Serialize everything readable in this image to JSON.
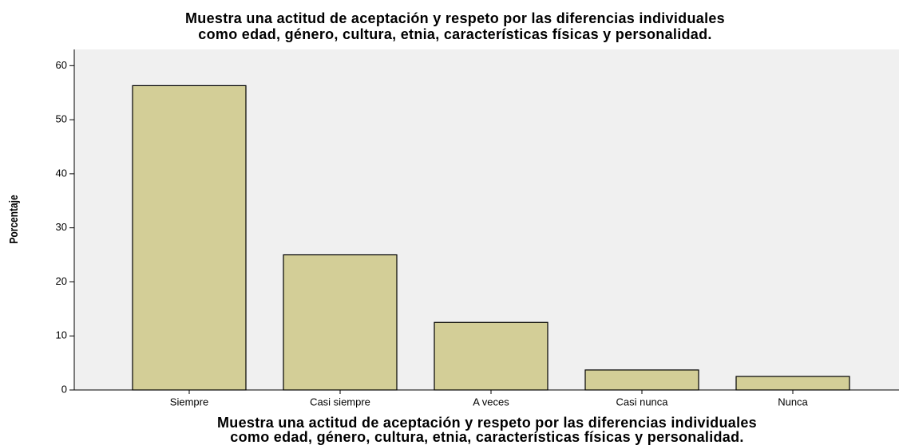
{
  "chart_data": {
    "type": "bar",
    "title": [
      "Muestra una actitud de aceptación y respeto por las diferencias individuales",
      "como edad, género, cultura, etnia, características físicas y personalidad."
    ],
    "x_label": [
      "Muestra una actitud de aceptación y respeto por las diferencias individuales",
      "como edad, género, cultura, etnia, características físicas y personalidad."
    ],
    "y_label": "Porcentaje",
    "categories": [
      "Siempre",
      "Casi siempre",
      "A veces",
      "Casi nunca",
      "Nunca"
    ],
    "values": [
      56.3,
      25.0,
      12.5,
      3.7,
      2.5
    ],
    "color": "#d3ce97",
    "ylim": [
      0,
      63
    ],
    "yticks": [
      0,
      10,
      20,
      30,
      40,
      50,
      60
    ],
    "grid": false
  }
}
